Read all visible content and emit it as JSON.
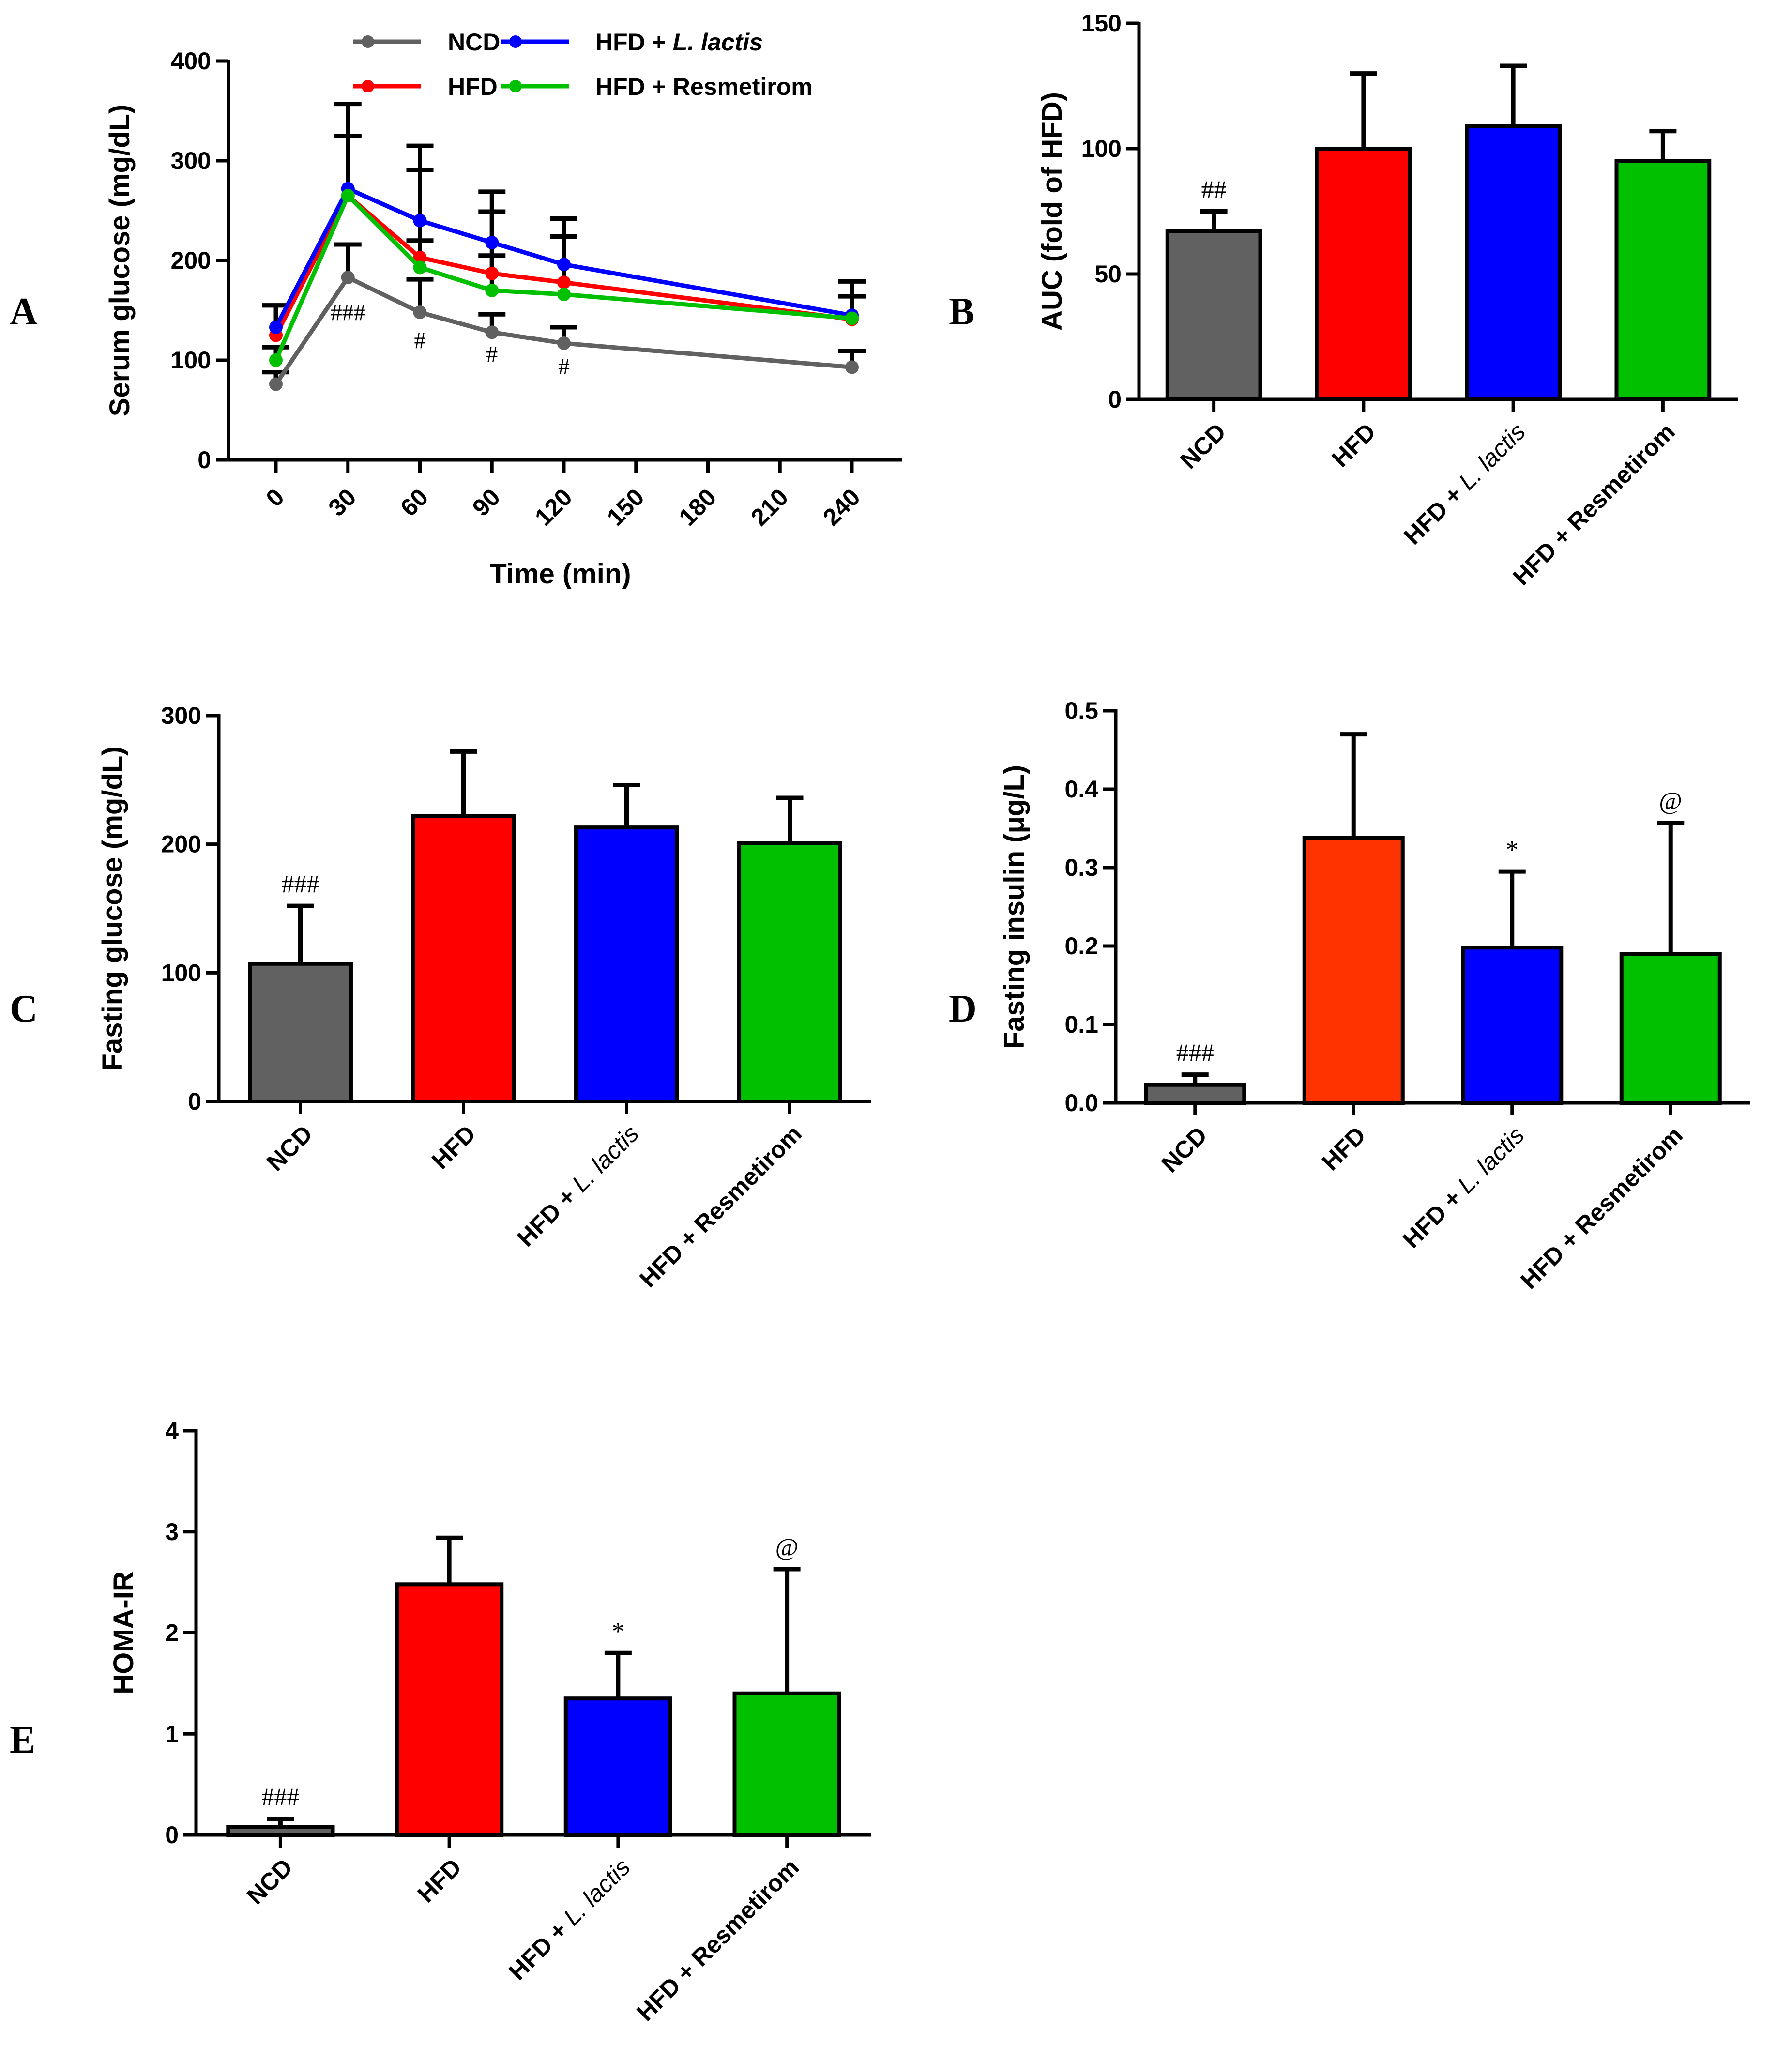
{
  "panels": {
    "A": {
      "letter": "A"
    },
    "B": {
      "letter": "B"
    },
    "C": {
      "letter": "C"
    },
    "D": {
      "letter": "D"
    },
    "E": {
      "letter": "E"
    }
  },
  "colors": {
    "NCD": "#616161",
    "HFD": "#ff0000",
    "HFD_red_D": "#ff3300",
    "L_lactis": "#0000ff",
    "Resmetirom": "#00c000",
    "axis": "#000000"
  },
  "chart_data": [
    {
      "id": "A",
      "type": "line",
      "title": "",
      "xlabel": "Time (min)",
      "ylabel": "Serum glucose (mg/dL)",
      "xlim": [
        0,
        240
      ],
      "ylim": [
        0,
        400
      ],
      "xticks": [
        0,
        30,
        60,
        90,
        120,
        150,
        180,
        210,
        240
      ],
      "yticks": [
        0,
        100,
        200,
        300,
        400
      ],
      "legend_position": "top",
      "x": [
        0,
        30,
        60,
        90,
        120,
        240
      ],
      "series": [
        {
          "name": "NCD",
          "values": [
            76,
            183,
            148,
            128,
            117,
            93
          ],
          "errors": [
            12,
            33,
            33,
            18,
            16,
            16
          ]
        },
        {
          "name": "HFD",
          "values": [
            125,
            265,
            203,
            187,
            178,
            141
          ],
          "errors": [
            30,
            60,
            88,
            62,
            46,
            38
          ]
        },
        {
          "name": "HFD + ",
          "name_italic": "L. lactis",
          "values": [
            133,
            272,
            240,
            218,
            196,
            145
          ],
          "errors": [
            22,
            85,
            75,
            51,
            46,
            34
          ]
        },
        {
          "name": "HFD + Resmetirom",
          "values": [
            100,
            265,
            193,
            170,
            166,
            142
          ],
          "errors": [
            13,
            60,
            27,
            35,
            58,
            22
          ]
        }
      ],
      "annotations": [
        {
          "text": "###",
          "x": 30,
          "y": 140
        },
        {
          "text": "#",
          "x": 60,
          "y": 112
        },
        {
          "text": "#",
          "x": 90,
          "y": 98
        },
        {
          "text": "#",
          "x": 120,
          "y": 86
        }
      ]
    },
    {
      "id": "B",
      "type": "bar",
      "title": "",
      "ylabel": "AUC (fold of HFD)",
      "ylim": [
        0,
        150
      ],
      "yticks": [
        0,
        50,
        100,
        150
      ],
      "categories": [
        "NCD",
        "HFD",
        "HFD + ",
        "HFD + Resmetirom"
      ],
      "category_italic": [
        "",
        "",
        "L. lactis",
        ""
      ],
      "values": [
        67,
        100,
        109,
        95
      ],
      "errors": [
        8,
        30,
        24,
        12
      ],
      "annotations": [
        "##",
        "",
        "",
        ""
      ]
    },
    {
      "id": "C",
      "type": "bar",
      "title": "",
      "ylabel": "Fasting glucose (mg/dL)",
      "ylim": [
        0,
        300
      ],
      "yticks": [
        0,
        100,
        200,
        300
      ],
      "categories": [
        "NCD",
        "HFD",
        "HFD + ",
        "HFD + Resmetirom"
      ],
      "category_italic": [
        "",
        "",
        "L. lactis",
        ""
      ],
      "values": [
        107,
        222,
        213,
        201
      ],
      "errors": [
        45,
        50,
        33,
        35
      ],
      "annotations": [
        "###",
        "",
        "",
        ""
      ]
    },
    {
      "id": "D",
      "type": "bar",
      "title": "",
      "ylabel": "Fasting insulin (μg/L)",
      "ylim": [
        0,
        0.5
      ],
      "yticks": [
        "0.0",
        "0.1",
        "0.2",
        "0.3",
        "0.4",
        "0.5"
      ],
      "categories": [
        "NCD",
        "HFD",
        "HFD + ",
        "HFD + Resmetirom"
      ],
      "category_italic": [
        "",
        "",
        "L. lactis",
        ""
      ],
      "values": [
        0.023,
        0.338,
        0.198,
        0.19
      ],
      "errors": [
        0.013,
        0.132,
        0.097,
        0.167
      ],
      "annotations": [
        "###",
        "",
        "*",
        "@"
      ]
    },
    {
      "id": "E",
      "type": "bar",
      "title": "",
      "ylabel": "HOMA-IR",
      "ylim": [
        0,
        4
      ],
      "yticks": [
        0,
        1,
        2,
        3,
        4
      ],
      "categories": [
        "NCD",
        "HFD",
        "HFD + ",
        "HFD + Resmetirom"
      ],
      "category_italic": [
        "",
        "",
        "L. lactis",
        ""
      ],
      "values": [
        0.08,
        2.48,
        1.35,
        1.4
      ],
      "errors": [
        0.08,
        0.46,
        0.45,
        1.23
      ],
      "annotations": [
        "###",
        "",
        "*",
        "@"
      ]
    }
  ]
}
